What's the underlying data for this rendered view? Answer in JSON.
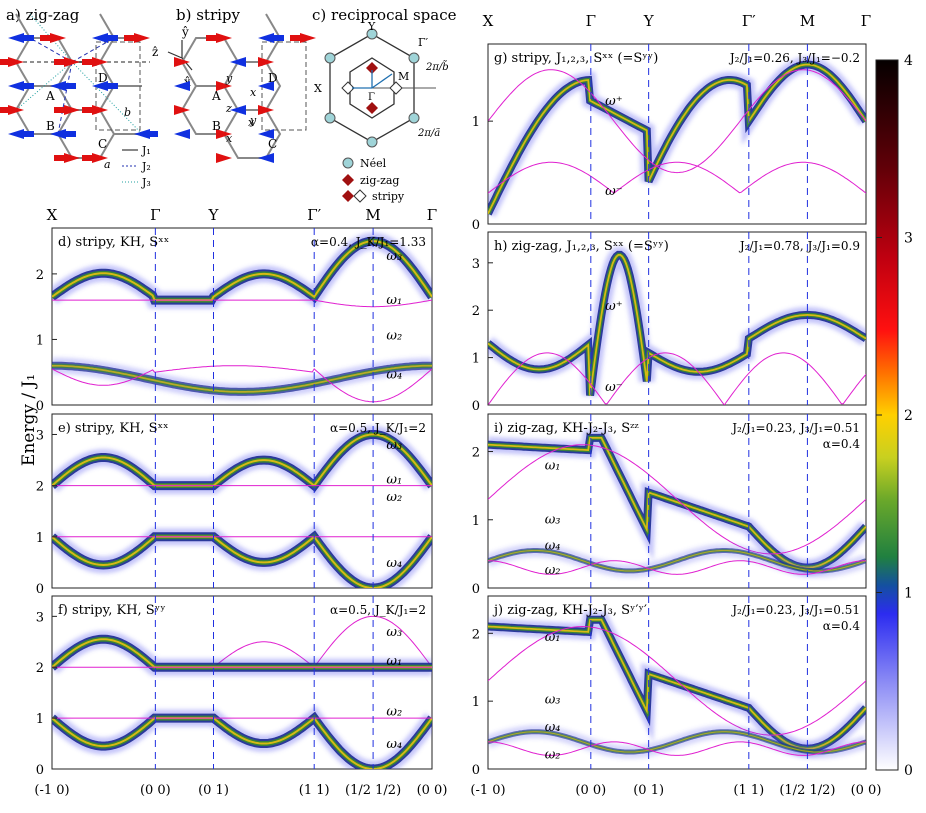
{
  "figure": {
    "top_left_panels": {
      "a": "a) zig-zag",
      "b": "b) stripy",
      "c": "c) reciprocal space",
      "a_sites": [
        "A",
        "B",
        "C",
        "D"
      ],
      "b_sites": [
        "A",
        "B",
        "C",
        "D"
      ],
      "a_vec": "a",
      "b_vec": "b",
      "bond_labels": [
        "x",
        "y",
        "z",
        "x",
        "y",
        "x"
      ],
      "axes": [
        "x̂",
        "ŷ",
        "ẑ"
      ],
      "legend_lines": [
        "J₁",
        "J₂",
        "J₃"
      ],
      "rs_points": [
        "Y",
        "Γ′",
        "X",
        "M",
        "Γ"
      ],
      "rs_vectors": [
        "2π/b̃",
        "2π/ã"
      ],
      "rs_legend": [
        "Néel",
        "zig-zag",
        "stripy"
      ]
    },
    "y_axis_label": "Energy / J₁",
    "colorbar": {
      "ticks": [
        "4",
        "3",
        "2",
        "1",
        "0"
      ],
      "max": 4,
      "min": 0
    },
    "x_ticks_symbols": [
      "X",
      "Γ",
      "Y",
      "Γ′",
      "M",
      "Γ"
    ],
    "x_ticks_coords": [
      "(-1 0)",
      "(0 0)",
      "(0 1)",
      "(1 1)",
      "(1/2 1/2)",
      "(0 0)"
    ],
    "panels": [
      {
        "id": "d",
        "title": "d) stripy, KH, Sˣˣ",
        "params": "α=0.4, J_K/J₁=1.33",
        "ymax": 2.7,
        "yticks": [
          "0",
          "1",
          "2"
        ],
        "modes": [
          "ω₃",
          "ω₁",
          "ω₂",
          "ω₄"
        ]
      },
      {
        "id": "e",
        "title": "e) stripy, KH, Sˣˣ",
        "params": "α=0.5, J_K/J₁=2",
        "ymax": 3.4,
        "yticks": [
          "0",
          "1",
          "2",
          "3"
        ],
        "modes": [
          "ω₃",
          "ω₁",
          "ω₂",
          "ω₄"
        ]
      },
      {
        "id": "f",
        "title": "f) stripy, KH, Sʸʸ",
        "params": "α=0.5, J_K/J₁=2",
        "ymax": 3.4,
        "yticks": [
          "0",
          "1",
          "2",
          "3"
        ],
        "modes": [
          "ω₃",
          "ω₁",
          "ω₂",
          "ω₄"
        ]
      },
      {
        "id": "g",
        "title": "g) stripy, J₁,₂,₃, Sˣˣ (=Sʸʸ)",
        "params": "J₂/J₁=0.26, J₃/J₁=−0.2",
        "ymax": 1.75,
        "yticks": [
          "0",
          "1"
        ],
        "modes": [
          "ω⁺",
          "ω⁻"
        ]
      },
      {
        "id": "h",
        "title": "h) zig-zag, J₁,₂,₃, Sˣˣ (=Sʸʸ)",
        "params": "J₂/J₁=0.78, J₃/J₁=0.9",
        "ymax": 3.65,
        "yticks": [
          "0",
          "1",
          "2",
          "3"
        ],
        "modes": [
          "ω⁺",
          "ω⁻"
        ]
      },
      {
        "id": "i",
        "title": "i) zig-zag, KH-J₂-J₃, Sᶻᶻ",
        "params": "J₂/J₁=0.23, J₃/J₁=0.51",
        "params2": "α=0.4",
        "ymax": 2.55,
        "yticks": [
          "0",
          "1",
          "2"
        ],
        "modes": [
          "ω₁",
          "ω₃",
          "ω₄",
          "ω₂"
        ]
      },
      {
        "id": "j",
        "title": "j) zig-zag, KH-J₂-J₃, Sʸ′ʸ′",
        "params": "J₂/J₁=0.23, J₃/J₁=0.51",
        "params2": "α=0.4",
        "ymax": 2.55,
        "yticks": [
          "0",
          "1",
          "2"
        ],
        "modes": [
          "ω₁",
          "ω₃",
          "ω₄",
          "ω₂"
        ]
      }
    ]
  }
}
